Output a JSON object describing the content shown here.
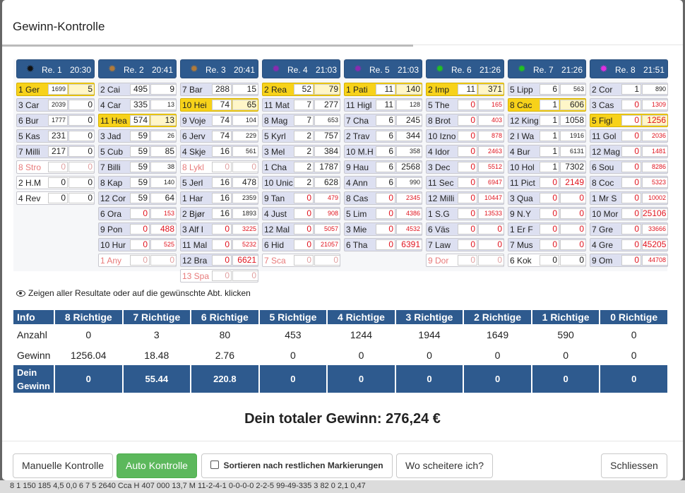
{
  "modal": {
    "title": "Gewinn-Kontrolle"
  },
  "hint": "Zeigen aller Resultate oder auf die gewünschte Abt. klicken",
  "races": [
    {
      "label": "Re. 1",
      "time": "20:30",
      "sun_color": "#111111",
      "runners": [
        [
          "1 Ger",
          "1699",
          "5",
          "hl",
          "s",
          ""
        ],
        [
          "3 Car",
          "2039",
          "0",
          "",
          "s",
          ""
        ],
        [
          "6 Bur",
          "1777",
          "0",
          "",
          "s",
          ""
        ],
        [
          "5 Kas",
          "231",
          "0",
          "",
          "",
          ""
        ],
        [
          "7 Milli",
          "217",
          "0",
          "",
          "",
          ""
        ],
        [
          "8 Stro",
          "0",
          "0",
          "sc",
          "",
          ""
        ],
        [
          "2 H.M",
          "0",
          "0",
          "wh",
          "",
          ""
        ],
        [
          "4 Rev",
          "0",
          "0",
          "wh",
          "",
          ""
        ]
      ]
    },
    {
      "label": "Re. 2",
      "time": "20:41",
      "sun_color": "#b07a3a",
      "runners": [
        [
          "2 Cai",
          "495",
          "9",
          "",
          "",
          ""
        ],
        [
          "4 Car",
          "335",
          "13",
          "",
          "",
          "s"
        ],
        [
          "11 Hea",
          "574",
          "13",
          "hl",
          "",
          ""
        ],
        [
          "3 Jad",
          "59",
          "26",
          "",
          "",
          "s"
        ],
        [
          "5 Cub",
          "59",
          "85",
          "",
          "",
          ""
        ],
        [
          "7 Billi",
          "59",
          "38",
          "",
          "",
          "s"
        ],
        [
          "8 Kap",
          "59",
          "140",
          "",
          "",
          "s"
        ],
        [
          "12 Cor",
          "59",
          "64",
          "",
          "",
          ""
        ],
        [
          "6 Ora",
          "0",
          "153",
          "",
          "r",
          "rs"
        ],
        [
          "9 Pon",
          "0",
          "488",
          "",
          "r",
          "r"
        ],
        [
          "10 Hur",
          "0",
          "525",
          "",
          "r",
          "rs"
        ],
        [
          "1 Any",
          "0",
          "0",
          "sc",
          "",
          ""
        ]
      ]
    },
    {
      "label": "Re. 3",
      "time": "20:41",
      "sun_color": "#b07a3a",
      "runners": [
        [
          "7 Bar",
          "288",
          "15",
          "",
          "",
          ""
        ],
        [
          "10 Hei",
          "74",
          "65",
          "hl",
          "",
          ""
        ],
        [
          "9 Voje",
          "74",
          "104",
          "",
          "",
          "s"
        ],
        [
          "6 Jerv",
          "74",
          "229",
          "",
          "",
          "s"
        ],
        [
          "4 Skje",
          "16",
          "561",
          "",
          "",
          "s"
        ],
        [
          "8 Lykl",
          "0",
          "0",
          "sc",
          "",
          ""
        ],
        [
          "5 Jerl",
          "16",
          "478",
          "",
          "",
          ""
        ],
        [
          "1 Har",
          "16",
          "2359",
          "",
          "",
          "s"
        ],
        [
          "2 Bjør",
          "16",
          "1893",
          "",
          "",
          "s"
        ],
        [
          "3 Alf I",
          "0",
          "3225",
          "",
          "r",
          "rs"
        ],
        [
          "11 Mal",
          "0",
          "5232",
          "",
          "r",
          "rs"
        ],
        [
          "12 Bra",
          "0",
          "6621",
          "",
          "r",
          "r"
        ],
        [
          "13 Spa",
          "0",
          "0",
          "sc",
          "",
          ""
        ]
      ]
    },
    {
      "label": "Re. 4",
      "time": "21:03",
      "sun_color": "#8a2bb0",
      "runners": [
        [
          "2 Rea",
          "52",
          "79",
          "hl",
          "",
          ""
        ],
        [
          "11 Mat",
          "7",
          "277",
          "",
          "",
          ""
        ],
        [
          "8 Mag",
          "7",
          "653",
          "",
          "",
          "s"
        ],
        [
          "5 Kyrl",
          "2",
          "757",
          "",
          "",
          ""
        ],
        [
          "3 Mel",
          "2",
          "384",
          "",
          "",
          ""
        ],
        [
          "1 Cha",
          "2",
          "1787",
          "",
          "",
          ""
        ],
        [
          "10 Unic",
          "2",
          "628",
          "",
          "",
          ""
        ],
        [
          "9 Tan",
          "0",
          "479",
          "",
          "r",
          "rs"
        ],
        [
          "4 Just",
          "0",
          "908",
          "",
          "r",
          "rs"
        ],
        [
          "12 Mal",
          "0",
          "5057",
          "",
          "r",
          "rs"
        ],
        [
          "6 Hid",
          "0",
          "21057",
          "",
          "r",
          "rs"
        ],
        [
          "7 Sca",
          "0",
          "0",
          "sc",
          "",
          ""
        ]
      ]
    },
    {
      "label": "Re. 5",
      "time": "21:03",
      "sun_color": "#8a2bb0",
      "runners": [
        [
          "1 Pati",
          "11",
          "140",
          "hl",
          "",
          ""
        ],
        [
          "11 Higl",
          "11",
          "128",
          "",
          "",
          "s"
        ],
        [
          "7 Cha",
          "6",
          "245",
          "",
          "",
          ""
        ],
        [
          "2 Trav",
          "6",
          "344",
          "",
          "",
          ""
        ],
        [
          "10 M.H",
          "6",
          "358",
          "",
          "",
          "s"
        ],
        [
          "9 Hau",
          "6",
          "2568",
          "",
          "",
          ""
        ],
        [
          "4 Ann",
          "6",
          "990",
          "",
          "",
          "s"
        ],
        [
          "8 Cas",
          "0",
          "2345",
          "",
          "r",
          "rs"
        ],
        [
          "5 Lim",
          "0",
          "4386",
          "",
          "r",
          "rs"
        ],
        [
          "3 Mie",
          "0",
          "4532",
          "",
          "r",
          "rs"
        ],
        [
          "6 Tha",
          "0",
          "6391",
          "",
          "r",
          "r"
        ]
      ]
    },
    {
      "label": "Re. 6",
      "time": "21:26",
      "sun_color": "#22c022",
      "runners": [
        [
          "2 Imp",
          "11",
          "371",
          "hl",
          "",
          ""
        ],
        [
          "5 The",
          "0",
          "165",
          "",
          "r",
          "rs"
        ],
        [
          "8 Brot",
          "0",
          "403",
          "",
          "r",
          "rs"
        ],
        [
          "10 Izno",
          "0",
          "878",
          "",
          "r",
          "rs"
        ],
        [
          "4 Idor",
          "0",
          "2463",
          "",
          "r",
          "rs"
        ],
        [
          "3 Dec",
          "0",
          "5512",
          "",
          "r",
          "rs"
        ],
        [
          "11 Sec",
          "0",
          "6947",
          "",
          "r",
          "rs"
        ],
        [
          "12 Milli",
          "0",
          "10447",
          "",
          "r",
          "rs"
        ],
        [
          "1 S.G",
          "0",
          "13533",
          "",
          "r",
          "rs"
        ],
        [
          "6 Väs",
          "0",
          "0",
          "",
          "r",
          "r"
        ],
        [
          "7 Law",
          "0",
          "0",
          "",
          "r",
          "r"
        ],
        [
          "9 Dor",
          "0",
          "0",
          "sc",
          "",
          ""
        ]
      ]
    },
    {
      "label": "Re. 7",
      "time": "21:26",
      "sun_color": "#22c022",
      "runners": [
        [
          "5 Lipp",
          "6",
          "563",
          "",
          "",
          "s"
        ],
        [
          "8 Cac",
          "1",
          "606",
          "hl",
          "",
          ""
        ],
        [
          "12 King",
          "1",
          "1058",
          "",
          "",
          ""
        ],
        [
          "2 I Wa",
          "1",
          "1916",
          "",
          "",
          "s"
        ],
        [
          "4 Bur",
          "1",
          "6131",
          "",
          "",
          "s"
        ],
        [
          "10 Hol",
          "1",
          "7302",
          "",
          "",
          ""
        ],
        [
          "11 Pict",
          "0",
          "2149",
          "",
          "r",
          "r"
        ],
        [
          "3 Qua",
          "0",
          "0",
          "",
          "r",
          "r"
        ],
        [
          "9 N.Y",
          "0",
          "0",
          "",
          "r",
          "r"
        ],
        [
          "1 Er F",
          "0",
          "0",
          "",
          "r",
          "r"
        ],
        [
          "7 Mus",
          "0",
          "0",
          "",
          "r",
          "r"
        ],
        [
          "6 Kok",
          "0",
          "0",
          "wh",
          "",
          ""
        ]
      ]
    },
    {
      "label": "Re. 8",
      "time": "21:51",
      "sun_color": "#e030e0",
      "runners": [
        [
          "2 Cor",
          "1",
          "890",
          "",
          "",
          "s"
        ],
        [
          "3 Cas",
          "0",
          "1309",
          "",
          "r",
          "rs"
        ],
        [
          "5 Figl",
          "0",
          "1256",
          "hl",
          "r",
          "r"
        ],
        [
          "11 Gol",
          "0",
          "2036",
          "",
          "r",
          "rs"
        ],
        [
          "12 Mag",
          "0",
          "1481",
          "",
          "r",
          "rs"
        ],
        [
          "6 Sou",
          "0",
          "8286",
          "",
          "r",
          "rs"
        ],
        [
          "8 Coc",
          "0",
          "5323",
          "",
          "r",
          "rs"
        ],
        [
          "1 Mr S",
          "0",
          "10002",
          "",
          "r",
          "rs"
        ],
        [
          "10 Mor",
          "0",
          "25106",
          "",
          "r",
          "r"
        ],
        [
          "7 Gre",
          "0",
          "33666",
          "",
          "r",
          "rs"
        ],
        [
          "4 Gre",
          "0",
          "45205",
          "",
          "r",
          "r"
        ],
        [
          "9 Om",
          "0",
          "44708",
          "",
          "r",
          "rs"
        ]
      ]
    }
  ],
  "results": {
    "headers": [
      "Info",
      "8 Richtige",
      "7 Richtige",
      "6 Richtige",
      "5 Richtige",
      "4 Richtige",
      "3 Richtige",
      "2 Richtige",
      "1 Richtige",
      "0 Richtige"
    ],
    "anzahl": [
      "Anzahl",
      "0",
      "3",
      "80",
      "453",
      "1244",
      "1944",
      "1649",
      "590",
      "0"
    ],
    "gewinn": [
      "Gewinn",
      "1256.04",
      "18.48",
      "2.76",
      "0",
      "0",
      "0",
      "0",
      "0",
      "0"
    ],
    "dein_label_1": "Dein",
    "dein_label_2": "Gewinn",
    "dein": [
      "0",
      "55.44",
      "220.8",
      "0",
      "0",
      "0",
      "0",
      "0",
      "0"
    ]
  },
  "total": "Dein totaler Gewinn: 276,24 €",
  "footer": {
    "manual": "Manuelle Kontrolle",
    "auto": "Auto Kontrolle",
    "sort": "Sortieren nach restlichen Markierungen",
    "why": "Wo scheitere ich?",
    "close": "Schliessen"
  },
  "background_row": "8        1 150 185   4,5   0,0    6     7     5  2640  Cca   H  407 000  13,7 M    11-2-4-1   0-0-0-0    2-2-5        99-49-335      3    82    0    2,1   0,47"
}
